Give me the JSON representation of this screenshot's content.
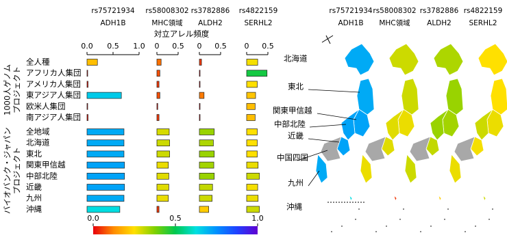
{
  "chart_data": {
    "type": "bar",
    "orientation": "horizontal",
    "title": "対立アレル頻度",
    "groups": [
      {
        "label": [
          "1000人ゲノム",
          "プロジェクト"
        ],
        "categories": [
          "全人種",
          "アフリカ人集団",
          "アメリカ人集団",
          "東アジア人集団",
          "欧米人集団",
          "南アジア人集団"
        ]
      },
      {
        "label": [
          "バイオバンク・ジャパン",
          "プロジェクト"
        ],
        "categories": [
          "全地域",
          "北海道",
          "東北",
          "関東甲信越",
          "中部北陸",
          "近畿",
          "九州",
          "沖縄"
        ]
      }
    ],
    "panels": [
      {
        "snp": "rs75721934",
        "gene": "ADH1B",
        "xlim": [
          0,
          1
        ],
        "xticks": [
          {
            "value": 0,
            "label": "0.0"
          },
          {
            "value": 0.5,
            "label": "0.5"
          },
          {
            "value": 1,
            "label": "1.0"
          }
        ],
        "values": [
          [
            0.2,
            0.01,
            0.02,
            0.66,
            0.01,
            0.02
          ],
          [
            0.71,
            0.71,
            0.71,
            0.72,
            0.72,
            0.72,
            0.71,
            0.63
          ]
        ]
      },
      {
        "snp": "rs58008302",
        "gene": "MHC領域",
        "xlim": [
          0,
          0.5
        ],
        "xticks": [
          0,
          0.5
        ],
        "values": [
          [
            0.1,
            0.07,
            0.05,
            0.07,
            0.02,
            0.05
          ],
          [
            0.29,
            0.3,
            0.3,
            0.27,
            0.28,
            0.28,
            0.27,
            0.05
          ]
        ]
      },
      {
        "snp": "rs3782886",
        "gene": "ALDH2",
        "xlim": [
          0,
          0.5
        ],
        "xticks": [
          0,
          0.5
        ],
        "values": [
          [
            0.05,
            0,
            0,
            0.11,
            0,
            0.01
          ],
          [
            0.35,
            0.33,
            0.35,
            0.34,
            0.35,
            0.31,
            0.3,
            0.22
          ]
        ]
      },
      {
        "snp": "rs4822159",
        "gene": "SERHL2",
        "xlim": [
          0,
          0.5
        ],
        "xticks": [
          0,
          0.5
        ],
        "values": [
          [
            0.26,
            0.48,
            0.25,
            0.21,
            0.2,
            0.2
          ],
          [
            0.25,
            0.25,
            0.25,
            0.27,
            0.3,
            0.26,
            0.27,
            0.3
          ]
        ]
      }
    ],
    "colorbar": {
      "lim": [
        0,
        1
      ],
      "ticks": [
        {
          "value": 0,
          "label": "0.0"
        },
        {
          "value": 0.5,
          "label": "0.5"
        },
        {
          "value": 1,
          "label": "1.0"
        }
      ],
      "colors": [
        "#e8000b",
        "#ff8c00",
        "#ffe000",
        "#7fd000",
        "#00c850",
        "#00e0e0",
        "#0090ff",
        "#2040ff",
        "#6000d0"
      ]
    },
    "map_regions": [
      "北海道",
      "東北",
      "関東甲信越",
      "中部北陸",
      "近畿",
      "中国四国",
      "九州",
      "沖縄"
    ]
  }
}
